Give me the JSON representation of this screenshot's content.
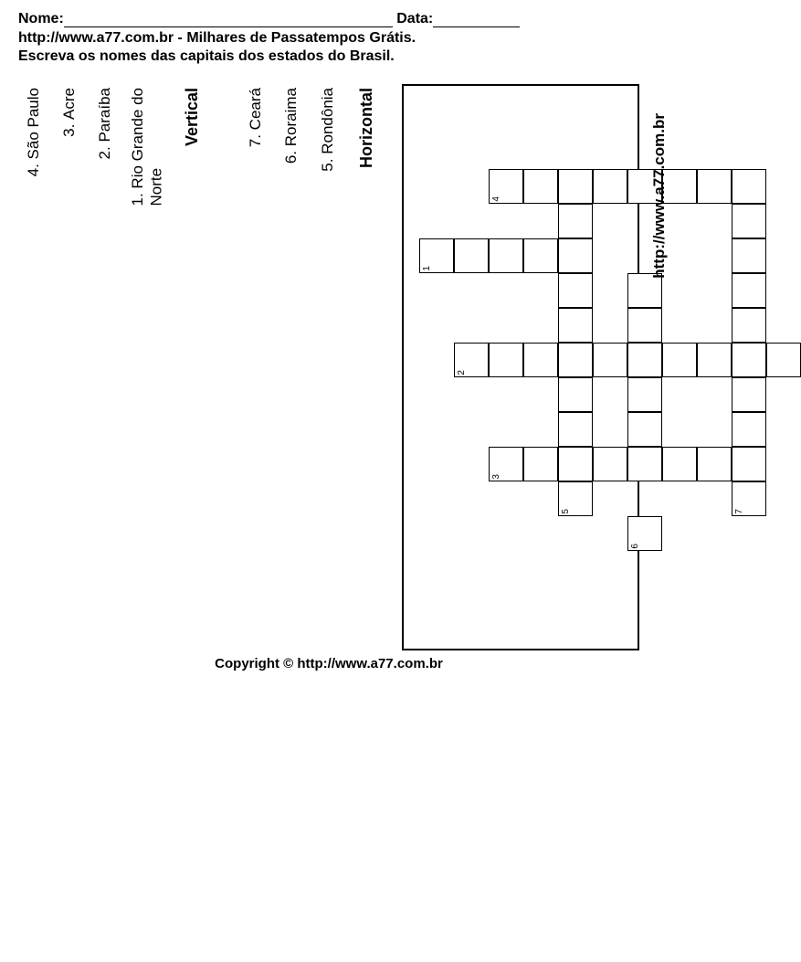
{
  "header": {
    "nome_label": "Nome:",
    "data_label": "Data:",
    "site_line": "http://www.a77.com.br - Milhares de Passatempos Grátis.",
    "instr_line": "Escreva os nomes das capitais dos estados do Brasil."
  },
  "clues": {
    "horizontal_heading": "Horizontal",
    "vertical_heading": "Vertical",
    "horizontal": [
      {
        "num": "5.",
        "text": "Rondônia"
      },
      {
        "num": "6.",
        "text": "Roraima"
      },
      {
        "num": "7.",
        "text": "Ceará"
      }
    ],
    "vertical": [
      {
        "num": "1.",
        "text": "Rio Grande do",
        "text2": "Norte"
      },
      {
        "num": "2.",
        "text": "Paraíba"
      },
      {
        "num": "3.",
        "text": "Acre"
      },
      {
        "num": "4.",
        "text": "São Paulo"
      }
    ]
  },
  "right_url": "http://www.a77.com.br",
  "copyright": "Copyright © http://www.a77.com.br",
  "grid": {
    "cell_size": 38,
    "cells": [
      {
        "r": 0,
        "c": 2,
        "n": "4"
      },
      {
        "r": 0,
        "c": 3
      },
      {
        "r": 0,
        "c": 4
      },
      {
        "r": 0,
        "c": 5
      },
      {
        "r": 0,
        "c": 6
      },
      {
        "r": 0,
        "c": 7
      },
      {
        "r": 0,
        "c": 8
      },
      {
        "r": 0,
        "c": 9
      },
      {
        "r": 1,
        "c": 4
      },
      {
        "r": 1,
        "c": 9
      },
      {
        "r": 2,
        "c": 0,
        "n": "1"
      },
      {
        "r": 2,
        "c": 1
      },
      {
        "r": 2,
        "c": 2
      },
      {
        "r": 2,
        "c": 3
      },
      {
        "r": 2,
        "c": 4
      },
      {
        "r": 2,
        "c": 9
      },
      {
        "r": 3,
        "c": 4
      },
      {
        "r": 3,
        "c": 6
      },
      {
        "r": 3,
        "c": 9
      },
      {
        "r": 4,
        "c": 4
      },
      {
        "r": 4,
        "c": 6
      },
      {
        "r": 4,
        "c": 9
      },
      {
        "r": 5,
        "c": 1,
        "n": "2"
      },
      {
        "r": 5,
        "c": 2
      },
      {
        "r": 5,
        "c": 3
      },
      {
        "r": 5,
        "c": 4
      },
      {
        "r": 5,
        "c": 5
      },
      {
        "r": 5,
        "c": 6
      },
      {
        "r": 5,
        "c": 7
      },
      {
        "r": 5,
        "c": 8
      },
      {
        "r": 5,
        "c": 9
      },
      {
        "r": 5,
        "c": 10
      },
      {
        "r": 6,
        "c": 4
      },
      {
        "r": 6,
        "c": 6
      },
      {
        "r": 6,
        "c": 9
      },
      {
        "r": 7,
        "c": 4
      },
      {
        "r": 7,
        "c": 6
      },
      {
        "r": 7,
        "c": 9
      },
      {
        "r": 8,
        "c": 2,
        "n": "3"
      },
      {
        "r": 8,
        "c": 3
      },
      {
        "r": 8,
        "c": 4
      },
      {
        "r": 8,
        "c": 5
      },
      {
        "r": 8,
        "c": 6
      },
      {
        "r": 8,
        "c": 7
      },
      {
        "r": 8,
        "c": 8
      },
      {
        "r": 8,
        "c": 9
      },
      {
        "r": 9,
        "c": 4,
        "n": "5"
      },
      {
        "r": 9,
        "c": 9,
        "n": "7"
      },
      {
        "r": 10,
        "c": 6,
        "n": "6"
      }
    ]
  }
}
